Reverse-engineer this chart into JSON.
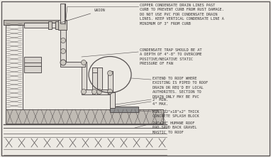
{
  "bg_color": "#edeae4",
  "line_color": "#555050",
  "pipe_fill": "#dedad4",
  "col_fill": "#c8c4bc",
  "gravel_fill": "#c0bbb4",
  "splash_fill": "#909090",
  "text_color": "#333030",
  "figsize": [
    3.82,
    2.21
  ],
  "dpi": 100,
  "ann_texts": [
    "COPPER CONDENSATE DRAIN LINES PAST\nCURB TO PREVENT CURB FROM RUST DAMAGE.\nDO NOT USE PVC FOR CONDENSATE DRAIN\nLINES. KEEP VERTICAL CONDENSATE LINE A\nMINIMUM OF 3\" FROM CURB",
    "CONDENSATE TRAP SHOULD BE AT\nA DEPTH OF 4\"-8\" TO OVERCOME\nPOSITIVE/NEGATIVE STATIC\nPRESSURE OF FAN",
    "EXTEND TO ROOF WHERE\nEXISTING IS PIPED TO ROOF\nDRAIN OR REQ'D BY LOCAL\nAUTHORITES. SECTION TO\nDRAIN ONLY MAY BE PVC",
    "2\" MIN.\n4\" MAX.",
    "MIN. 12\"x18\"x2\" THICK\nCONCRETE SPLASH BLOCK",
    "24\"x24\" HUMANE ROOF\nPAD SPUD BACK GRAVEL\nMASTIC TO ROOF"
  ]
}
